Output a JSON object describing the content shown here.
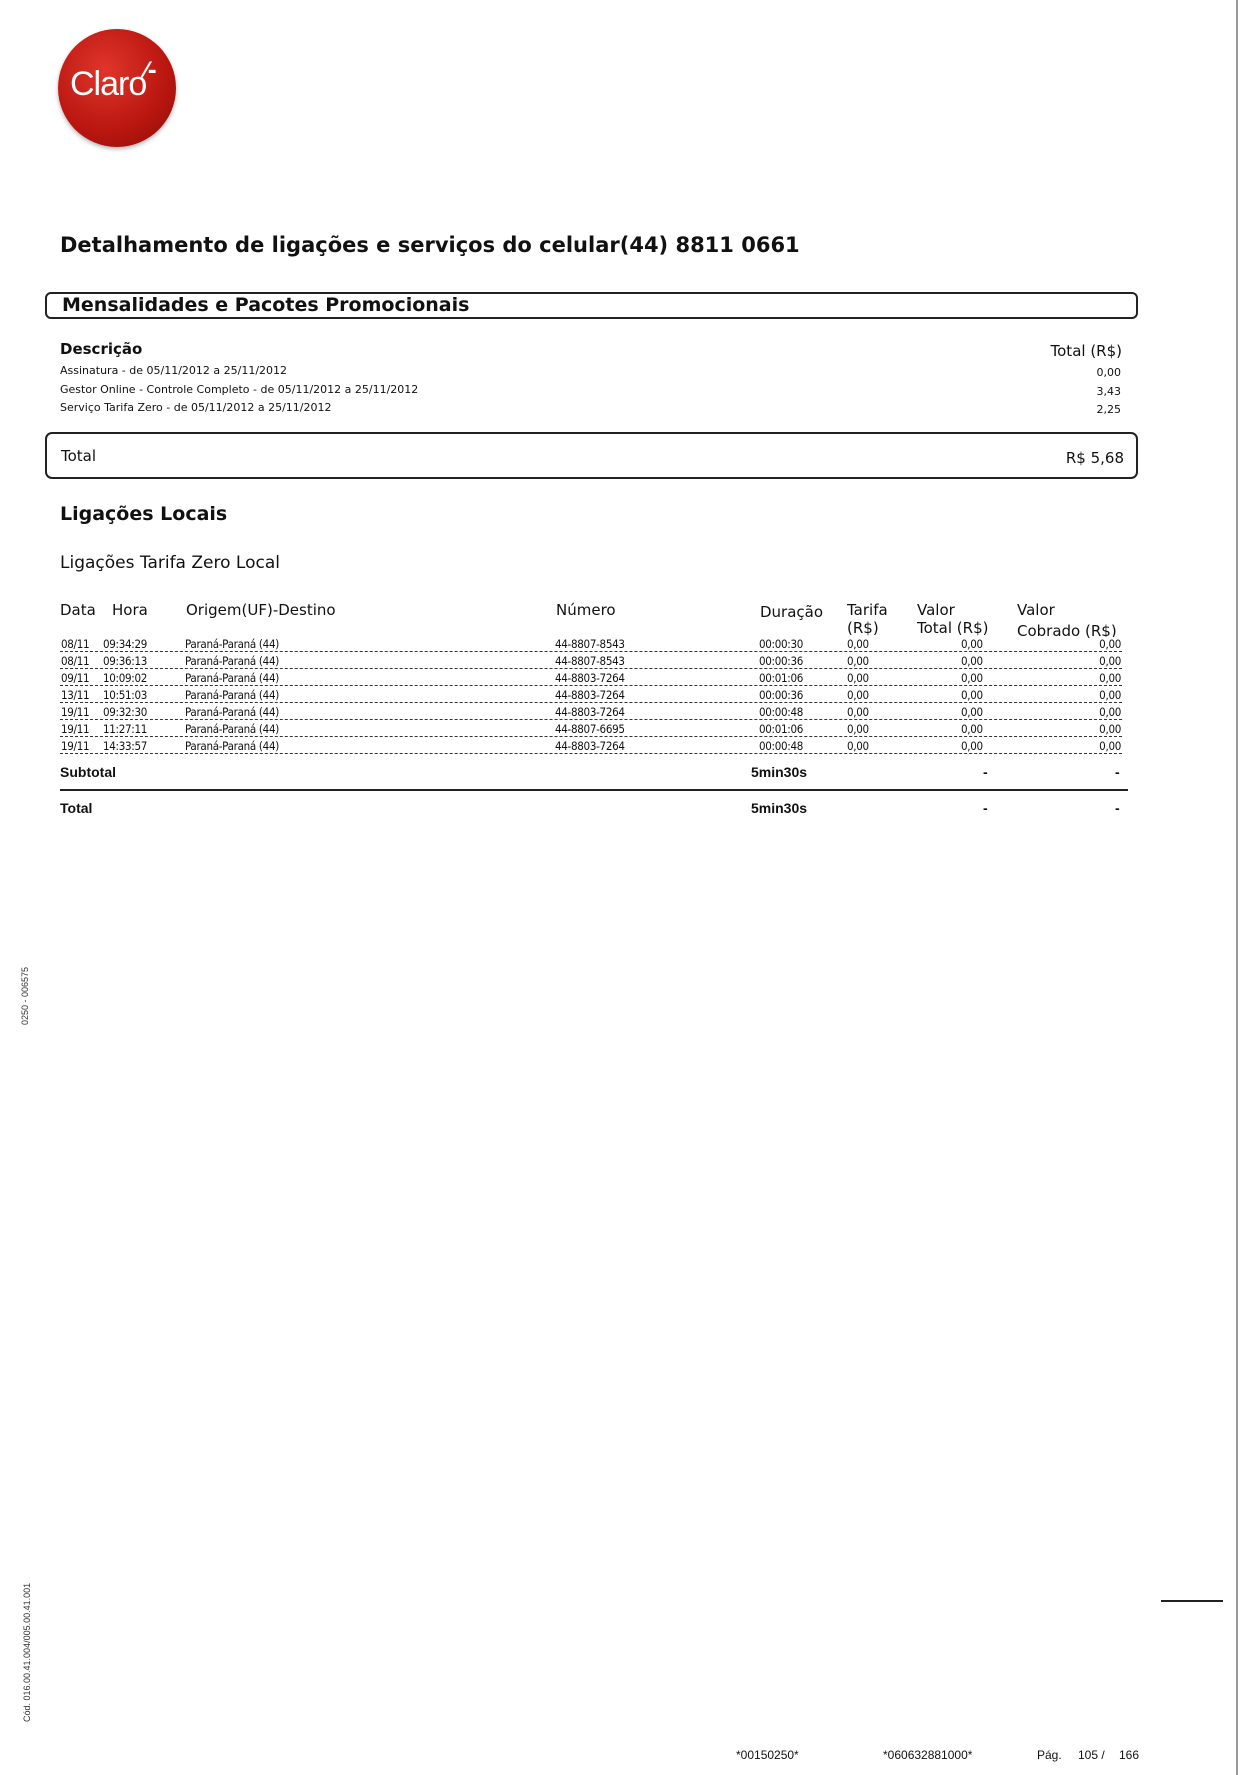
{
  "logo": {
    "text": "Claro",
    "color": "#c0180f"
  },
  "title": "Detalhamento de ligações e serviços do celular(44) 8811 0661",
  "mensalidades": {
    "heading": "Mensalidades e Pacotes Promocionais",
    "col_desc": "Descrição",
    "col_total": "Total (R$)",
    "items": [
      {
        "desc": "Assinatura - de 05/11/2012 a 25/11/2012",
        "total": "0,00"
      },
      {
        "desc": "Gestor Online - Controle Completo - de 05/11/2012 a 25/11/2012",
        "total": "3,43"
      },
      {
        "desc": "Serviço Tarifa Zero - de 05/11/2012 a 25/11/2012",
        "total": "2,25"
      }
    ],
    "total_label": "Total",
    "total_value": "R$ 5,68"
  },
  "ligacoes": {
    "heading": "Ligações Locais",
    "subheading": "Ligações Tarifa Zero Local",
    "columns": {
      "data": "Data",
      "hora": "Hora",
      "origem": "Origem(UF)-Destino",
      "numero": "Número",
      "duracao": "Duração",
      "tarifa_1": "Tarifa",
      "tarifa_2": "(R$)",
      "valor_total_1": "Valor",
      "valor_total_2": "Total (R$)",
      "valor_cobrado_1": "Valor",
      "valor_cobrado_2": "Cobrado (R$)"
    },
    "rows": [
      {
        "data": "08/11",
        "hora": "09:34:29",
        "origem": "Paraná-Paraná (44)",
        "numero": "44-8807-8543",
        "duracao": "00:00:30",
        "tarifa": "0,00",
        "valor_total": "0,00",
        "valor_cobrado": "0,00"
      },
      {
        "data": "08/11",
        "hora": "09:36:13",
        "origem": "Paraná-Paraná (44)",
        "numero": "44-8807-8543",
        "duracao": "00:00:36",
        "tarifa": "0,00",
        "valor_total": "0,00",
        "valor_cobrado": "0,00"
      },
      {
        "data": "09/11",
        "hora": "10:09:02",
        "origem": "Paraná-Paraná (44)",
        "numero": "44-8803-7264",
        "duracao": "00:01:06",
        "tarifa": "0,00",
        "valor_total": "0,00",
        "valor_cobrado": "0,00"
      },
      {
        "data": "13/11",
        "hora": "10:51:03",
        "origem": "Paraná-Paraná (44)",
        "numero": "44-8803-7264",
        "duracao": "00:00:36",
        "tarifa": "0,00",
        "valor_total": "0,00",
        "valor_cobrado": "0,00"
      },
      {
        "data": "19/11",
        "hora": "09:32:30",
        "origem": "Paraná-Paraná (44)",
        "numero": "44-8803-7264",
        "duracao": "00:00:48",
        "tarifa": "0,00",
        "valor_total": "0,00",
        "valor_cobrado": "0,00"
      },
      {
        "data": "19/11",
        "hora": "11:27:11",
        "origem": "Paraná-Paraná (44)",
        "numero": "44-8807-6695",
        "duracao": "00:01:06",
        "tarifa": "0,00",
        "valor_total": "0,00",
        "valor_cobrado": "0,00"
      },
      {
        "data": "19/11",
        "hora": "14:33:57",
        "origem": "Paraná-Paraná (44)",
        "numero": "44-8803-7264",
        "duracao": "00:00:48",
        "tarifa": "0,00",
        "valor_total": "0,00",
        "valor_cobrado": "0,00"
      }
    ],
    "subtotal": {
      "label": "Subtotal",
      "duracao": "5min30s",
      "valor_total": "-",
      "valor_cobrado": "-"
    },
    "total": {
      "label": "Total",
      "duracao": "5min30s",
      "valor_total": "-",
      "valor_cobrado": "-"
    }
  },
  "side_text": {
    "code1": "0250 - 006575",
    "code2": "Cód. 016.00.41.004/005.00.41.001"
  },
  "footer": {
    "barcode1": "*00150250*",
    "barcode2": "*060632881000*",
    "page_label": "Pág.",
    "page_current": "105 /",
    "page_total": "166"
  }
}
